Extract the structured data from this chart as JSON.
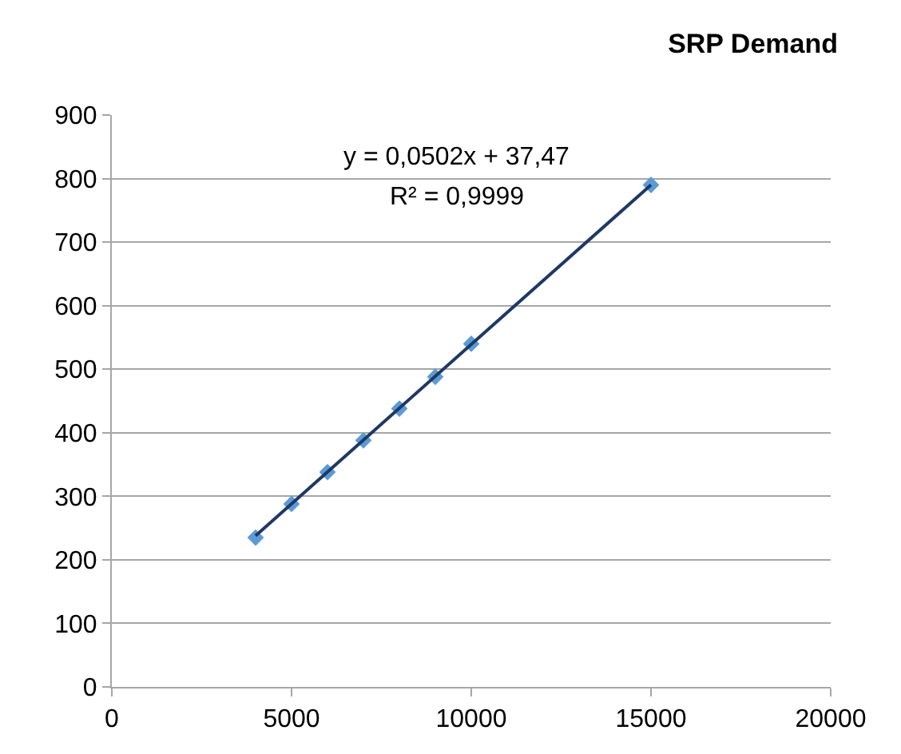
{
  "chart_data": {
    "type": "scatter",
    "title": "SRP Demand",
    "x": [
      4000,
      5000,
      6000,
      7000,
      8000,
      9000,
      10000,
      15000
    ],
    "series": [
      {
        "color": "#5b9bd5",
        "marker": "diamond",
        "values": [
          235,
          288,
          338,
          388,
          438,
          488,
          540,
          790
        ]
      },
      {
        "type": "line",
        "color": "#1f3864",
        "x": [
          4000,
          15000
        ],
        "values": [
          238,
          790
        ]
      }
    ],
    "xlim": [
      0,
      20000
    ],
    "xticks": [
      0,
      5000,
      10000,
      15000,
      20000
    ],
    "ylim": [
      0,
      900
    ],
    "yticks": [
      0,
      100,
      200,
      300,
      400,
      500,
      600,
      700,
      800,
      900
    ],
    "grid": "y",
    "annotations": [
      "y = 0,0502x + 37,47",
      "R² = 0,9999"
    ]
  }
}
